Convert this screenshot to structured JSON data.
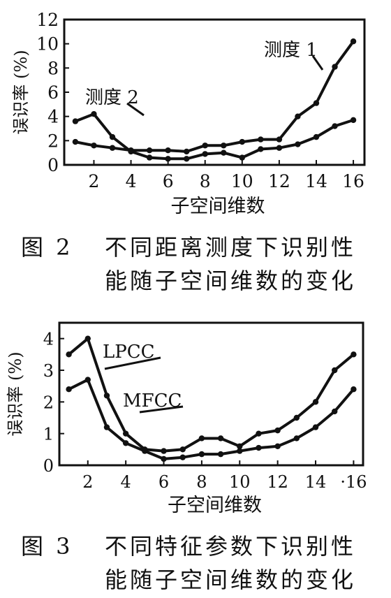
{
  "figures": [
    {
      "caption_number": "图 2",
      "caption_line1": "不同距离测度下识别性",
      "caption_line2": "能随子空间维数的变化"
    },
    {
      "caption_number": "图 3",
      "caption_line1": "不同特征参数下识别性",
      "caption_line2": "能随子空间维数的变化"
    }
  ],
  "chart_data": [
    {
      "type": "line",
      "title": "",
      "xlabel": "子空间维数",
      "ylabel": "误识率 (%)",
      "xlim": [
        0.4,
        16.6
      ],
      "ylim": [
        0,
        12
      ],
      "xticks": [
        2,
        4,
        6,
        8,
        10,
        12,
        14,
        16
      ],
      "yticks": [
        0,
        2,
        4,
        6,
        8,
        10,
        12
      ],
      "grid": false,
      "x": [
        1,
        2,
        3,
        4,
        5,
        6,
        7,
        8,
        9,
        10,
        11,
        12,
        13,
        14,
        15,
        16
      ],
      "series": [
        {
          "name": "测度 1",
          "values": [
            3.6,
            4.2,
            2.3,
            1.1,
            0.6,
            0.5,
            0.5,
            0.9,
            1.0,
            0.6,
            1.3,
            1.4,
            1.7,
            2.3,
            3.2,
            3.7
          ]
        },
        {
          "name": "测度 2",
          "values": [
            1.9,
            1.6,
            1.4,
            1.2,
            1.2,
            1.2,
            1.1,
            1.6,
            1.6,
            1.9,
            2.1,
            2.1,
            4.0,
            5.1,
            8.1,
            10.2
          ]
        }
      ],
      "annotations": [
        {
          "text": "测度 1",
          "series": 0
        },
        {
          "text": "测度 2",
          "series": 1
        }
      ]
    },
    {
      "type": "line",
      "title": "",
      "xlabel": "子空间维数",
      "ylabel": "误识率 (%)",
      "xlim": [
        0.5,
        16.5
      ],
      "ylim": [
        0,
        4.5
      ],
      "xticks": [
        2,
        4,
        6,
        8,
        10,
        12,
        14,
        16
      ],
      "xtick_labels": [
        "2",
        "4",
        "6",
        "8",
        "10",
        "12",
        "14",
        "·16"
      ],
      "yticks": [
        0,
        1,
        2,
        3,
        4
      ],
      "grid": false,
      "x": [
        1,
        2,
        3,
        4,
        5,
        6,
        7,
        8,
        9,
        10,
        11,
        12,
        13,
        14,
        15,
        16
      ],
      "series": [
        {
          "name": "LPCC",
          "values": [
            3.5,
            4.0,
            2.2,
            1.0,
            0.5,
            0.45,
            0.5,
            0.85,
            0.85,
            0.6,
            1.0,
            1.1,
            1.5,
            2.0,
            3.0,
            3.5
          ]
        },
        {
          "name": "MFCC",
          "values": [
            2.4,
            2.7,
            1.2,
            0.7,
            0.45,
            0.2,
            0.25,
            0.35,
            0.35,
            0.45,
            0.55,
            0.6,
            0.85,
            1.2,
            1.7,
            2.4
          ]
        }
      ],
      "annotations": [
        {
          "text": "LPCC",
          "series": 0
        },
        {
          "text": "MFCC",
          "series": 1
        }
      ]
    }
  ]
}
